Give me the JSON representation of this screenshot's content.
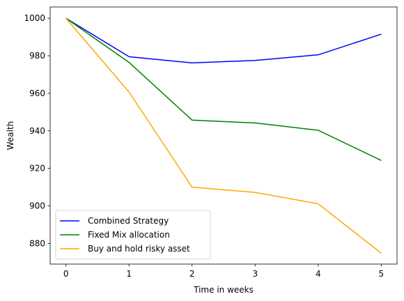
{
  "chart_data": {
    "type": "line",
    "title": "",
    "xlabel": "Time in weeks",
    "ylabel": "Wealth",
    "x": [
      0,
      1,
      2,
      3,
      4,
      5
    ],
    "xticks": [
      0,
      1,
      2,
      3,
      4,
      5
    ],
    "yticks": [
      880,
      900,
      920,
      940,
      960,
      980,
      1000
    ],
    "xlim": [
      -0.25,
      5.25
    ],
    "ylim": [
      869,
      1006
    ],
    "grid": false,
    "legend_position": "lower-left",
    "series": [
      {
        "name": "Combined Strategy",
        "color": "#0000ff",
        "values": [
          1000,
          979.5,
          976.2,
          977.5,
          980.5,
          991.5
        ]
      },
      {
        "name": "Fixed Mix allocation",
        "color": "#008000",
        "values": [
          1000,
          976.5,
          945.7,
          944.2,
          940.3,
          924.2
        ]
      },
      {
        "name": "Buy and hold risky asset",
        "color": "#ffa500",
        "values": [
          1000,
          960.7,
          910.0,
          907.2,
          901.1,
          874.8
        ]
      }
    ]
  }
}
